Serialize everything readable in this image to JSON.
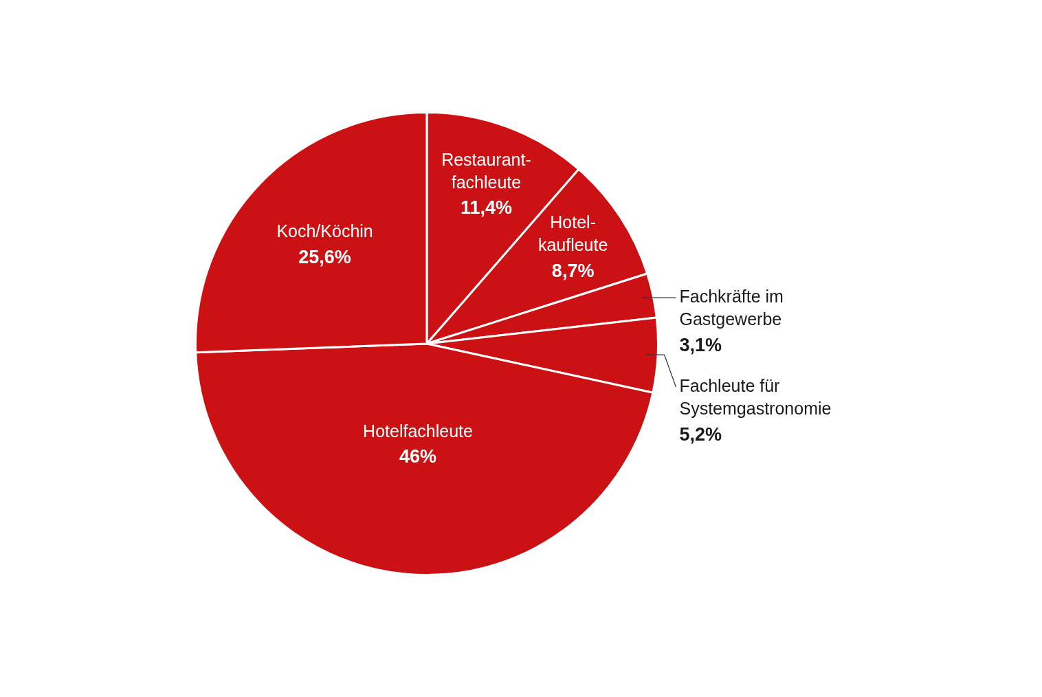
{
  "chart_data": {
    "type": "pie",
    "categories": [
      "Restaurant-\nfachleute",
      "Hotel-\nkaufleute",
      "Fachkräfte im\nGastgewerbe",
      "Fachleute für\nSystemgastronomie",
      "Hotelfachleute",
      "Koch/Köchin"
    ],
    "values": [
      11.4,
      8.7,
      3.1,
      5.2,
      46,
      25.6
    ],
    "colors": [
      "#cc1114",
      "#cc1114",
      "#cc1114",
      "#cc1114",
      "#cc1114",
      "#cc1114"
    ],
    "value_labels": [
      "11,4%",
      "8,7%",
      "3,1%",
      "5,2%",
      "46%",
      "25,6%"
    ],
    "legend": false
  }
}
